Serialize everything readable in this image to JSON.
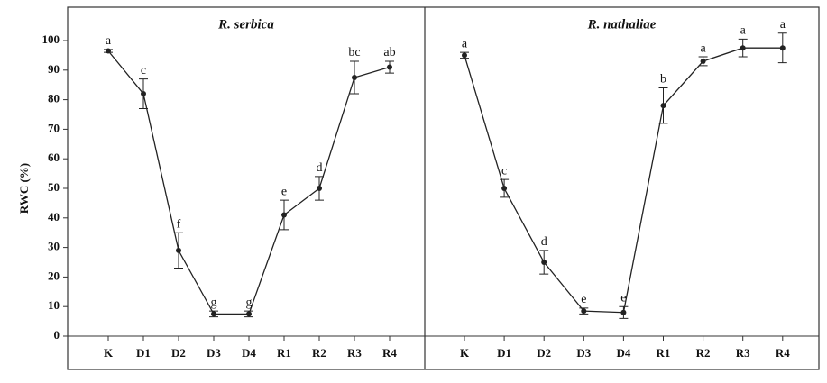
{
  "chart_data": [
    {
      "type": "line",
      "title": "R. serbica",
      "y_label": "RWC (%)",
      "categories": [
        "K",
        "D1",
        "D2",
        "D3",
        "D4",
        "R1",
        "R2",
        "R3",
        "R4"
      ],
      "values": [
        96.5,
        82,
        29,
        7.5,
        7.5,
        41,
        50,
        87.5,
        91
      ],
      "errors": [
        0.5,
        5,
        6,
        1,
        1,
        5,
        4,
        5.5,
        2
      ],
      "annotations": [
        "a",
        "c",
        "f",
        "g",
        "g",
        "e",
        "d",
        "bc",
        "ab"
      ],
      "color": "#222222",
      "ylim": [
        0,
        100
      ],
      "yticks": [
        0,
        10,
        20,
        30,
        40,
        50,
        60,
        70,
        80,
        90,
        100
      ]
    },
    {
      "type": "line",
      "title": "R. nathaliae",
      "categories": [
        "K",
        "D1",
        "D2",
        "D3",
        "D4",
        "R1",
        "R2",
        "R3",
        "R4"
      ],
      "values": [
        95,
        50,
        25,
        8.5,
        8,
        78,
        93,
        97.5,
        97.5
      ],
      "errors": [
        1,
        3,
        4,
        1,
        2,
        6,
        1.5,
        3,
        5
      ],
      "annotations": [
        "a",
        "c",
        "d",
        "e",
        "e",
        "b",
        "a",
        "a",
        "a"
      ],
      "color": "#222222",
      "ylim": [
        0,
        100
      ]
    }
  ]
}
